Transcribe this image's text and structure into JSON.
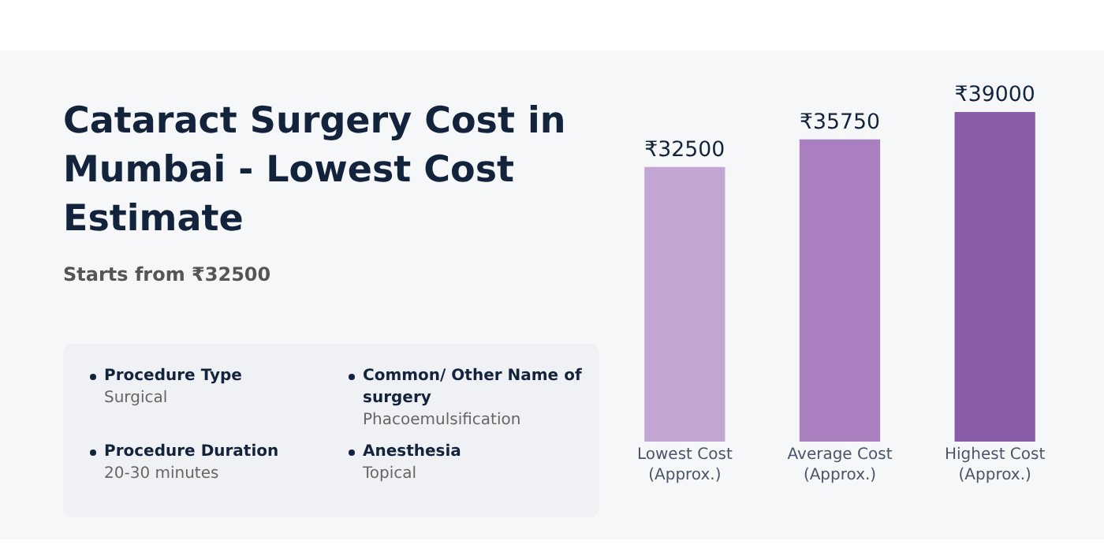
{
  "chart_data": {
    "type": "bar",
    "title": "Cataract Surgery Cost in Mumbai - Lowest Cost Estimate",
    "subtitle": "Starts from ₹32500",
    "annotations": [
      "Procedure Type",
      "Surgical",
      "Common/ Other Name of surgery",
      "Phacoemulsification",
      "Procedure Duration",
      "20-30 minutes",
      "Anesthesia",
      "Topical"
    ],
    "categories": [
      "Lowest Cost\n(Approx.)",
      "Average Cost\n(Approx.)",
      "Highest Cost\n(Approx.)"
    ],
    "values": [
      32500,
      35750,
      39000
    ],
    "colors": [
      "#c4a6d4",
      "#a97fbf",
      "#8a5da8"
    ],
    "value_labels": [
      "₹32500",
      "₹35750",
      "₹39000"
    ],
    "tick_labels": "x",
    "grid": false,
    "legend": false
  }
}
